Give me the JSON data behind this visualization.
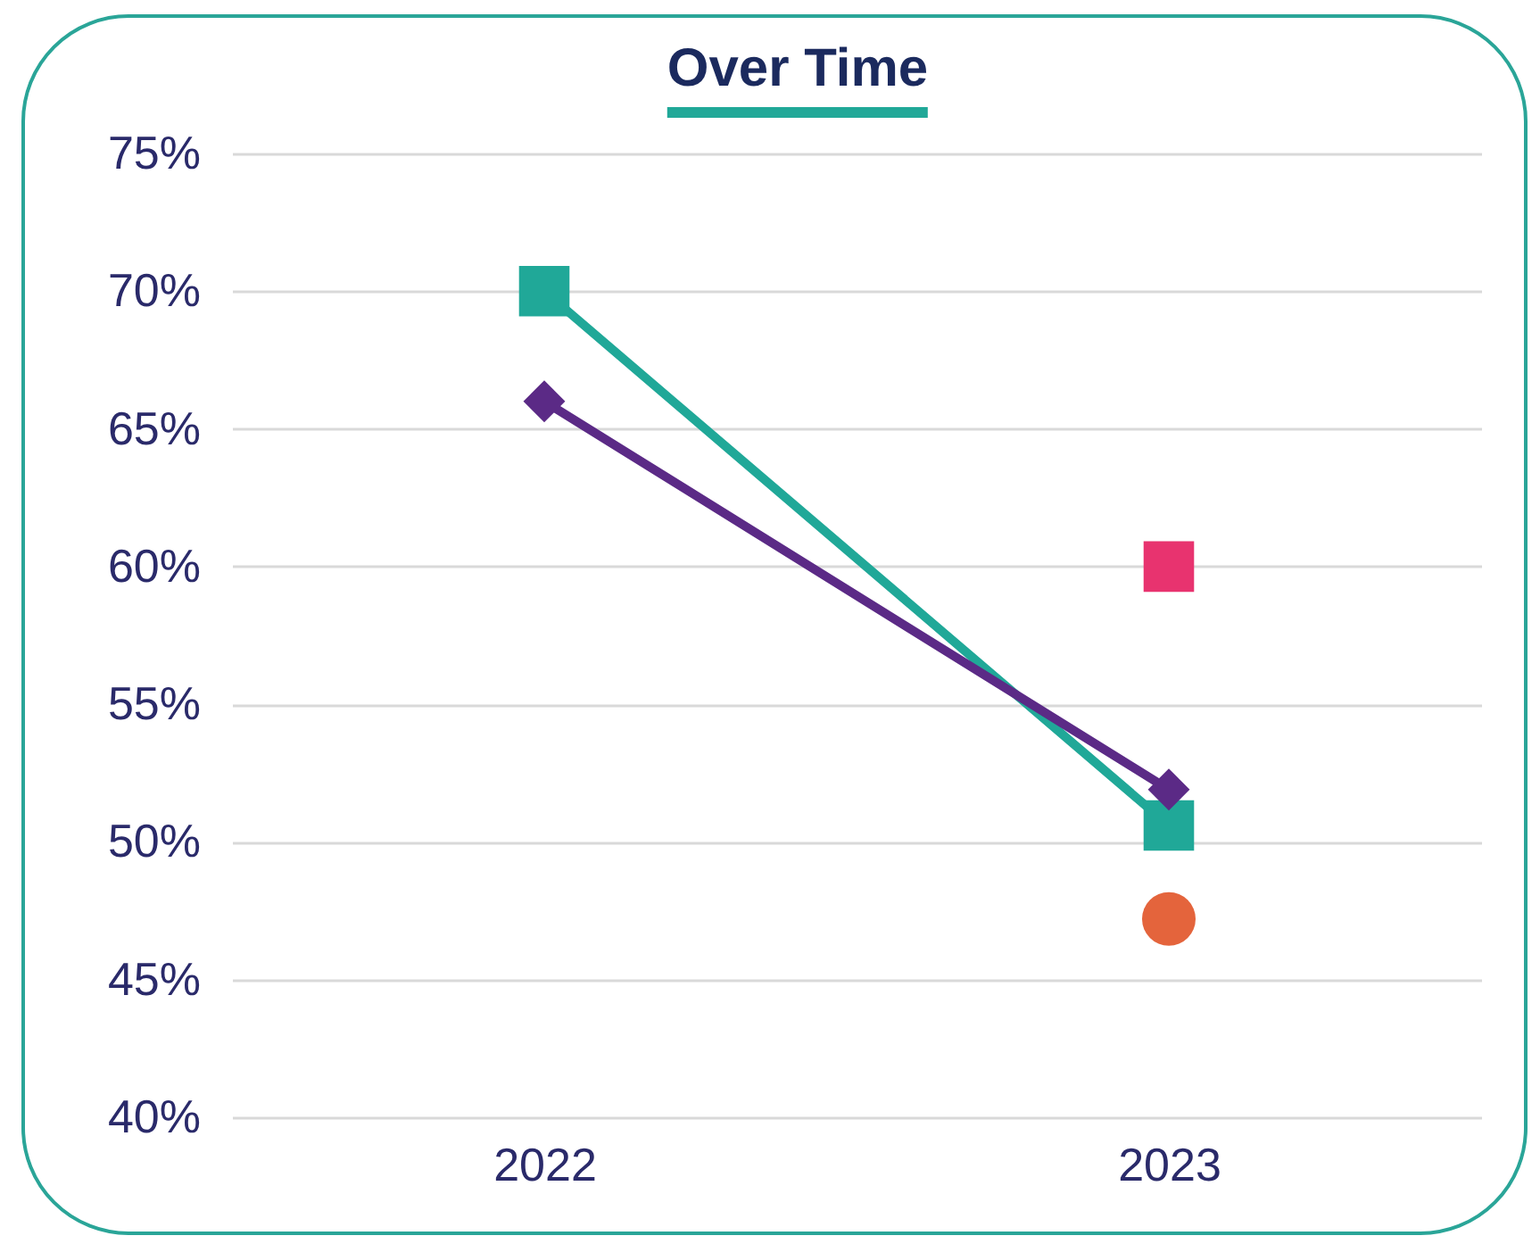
{
  "chart_data": {
    "type": "line",
    "title": "Over Time",
    "categories": [
      "2022",
      "2023"
    ],
    "series": [
      {
        "type": "line",
        "color": "#20a898",
        "marker": "square",
        "values": [
          70,
          50.6
        ]
      },
      {
        "type": "line",
        "color": "#5b2a86",
        "marker": "diamond",
        "values": [
          66,
          51.9
        ]
      },
      {
        "type": "scatter",
        "color": "#e8336f",
        "marker": "square",
        "values": [
          null,
          60
        ]
      },
      {
        "type": "scatter",
        "color": "#e4643c",
        "marker": "circle",
        "values": [
          null,
          47.2
        ]
      }
    ],
    "ylim": [
      40,
      75
    ],
    "yticks": [
      {
        "value": 40,
        "label": "40%"
      },
      {
        "value": 45,
        "label": "45%"
      },
      {
        "value": 50,
        "label": "50%"
      },
      {
        "value": 55,
        "label": "55%"
      },
      {
        "value": 60,
        "label": "60%"
      },
      {
        "value": 65,
        "label": "65%"
      },
      {
        "value": 70,
        "label": "70%"
      },
      {
        "value": 75,
        "label": "75%"
      }
    ],
    "grid": "y"
  }
}
